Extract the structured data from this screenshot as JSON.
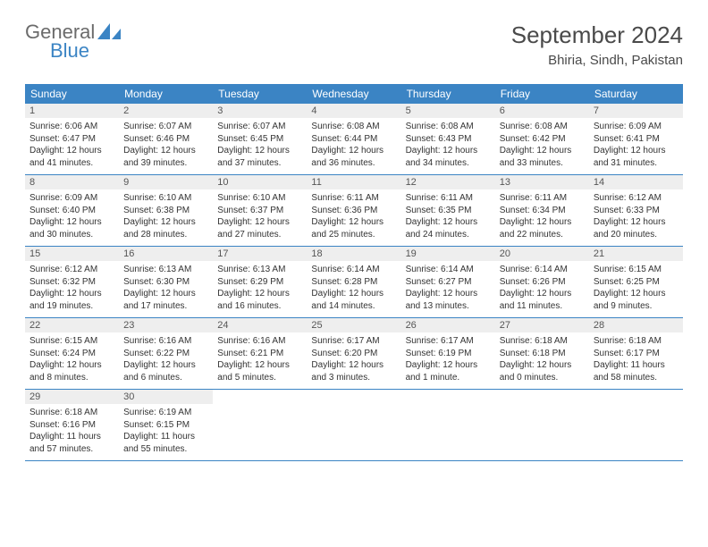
{
  "logo": {
    "word1": "General",
    "word2": "Blue"
  },
  "title": "September 2024",
  "location": "Bhiria, Sindh, Pakistan",
  "colors": {
    "accent": "#3b84c4",
    "dow_bg": "#3b84c4",
    "dow_text": "#ffffff",
    "daynum_bg": "#eeeeee",
    "text": "#333333",
    "title_text": "#4a4a4a",
    "logo_gray": "#6b6b6b"
  },
  "dow": [
    "Sunday",
    "Monday",
    "Tuesday",
    "Wednesday",
    "Thursday",
    "Friday",
    "Saturday"
  ],
  "weeks": [
    [
      {
        "n": "1",
        "sr": "Sunrise: 6:06 AM",
        "ss": "Sunset: 6:47 PM",
        "dl": "Daylight: 12 hours and 41 minutes."
      },
      {
        "n": "2",
        "sr": "Sunrise: 6:07 AM",
        "ss": "Sunset: 6:46 PM",
        "dl": "Daylight: 12 hours and 39 minutes."
      },
      {
        "n": "3",
        "sr": "Sunrise: 6:07 AM",
        "ss": "Sunset: 6:45 PM",
        "dl": "Daylight: 12 hours and 37 minutes."
      },
      {
        "n": "4",
        "sr": "Sunrise: 6:08 AM",
        "ss": "Sunset: 6:44 PM",
        "dl": "Daylight: 12 hours and 36 minutes."
      },
      {
        "n": "5",
        "sr": "Sunrise: 6:08 AM",
        "ss": "Sunset: 6:43 PM",
        "dl": "Daylight: 12 hours and 34 minutes."
      },
      {
        "n": "6",
        "sr": "Sunrise: 6:08 AM",
        "ss": "Sunset: 6:42 PM",
        "dl": "Daylight: 12 hours and 33 minutes."
      },
      {
        "n": "7",
        "sr": "Sunrise: 6:09 AM",
        "ss": "Sunset: 6:41 PM",
        "dl": "Daylight: 12 hours and 31 minutes."
      }
    ],
    [
      {
        "n": "8",
        "sr": "Sunrise: 6:09 AM",
        "ss": "Sunset: 6:40 PM",
        "dl": "Daylight: 12 hours and 30 minutes."
      },
      {
        "n": "9",
        "sr": "Sunrise: 6:10 AM",
        "ss": "Sunset: 6:38 PM",
        "dl": "Daylight: 12 hours and 28 minutes."
      },
      {
        "n": "10",
        "sr": "Sunrise: 6:10 AM",
        "ss": "Sunset: 6:37 PM",
        "dl": "Daylight: 12 hours and 27 minutes."
      },
      {
        "n": "11",
        "sr": "Sunrise: 6:11 AM",
        "ss": "Sunset: 6:36 PM",
        "dl": "Daylight: 12 hours and 25 minutes."
      },
      {
        "n": "12",
        "sr": "Sunrise: 6:11 AM",
        "ss": "Sunset: 6:35 PM",
        "dl": "Daylight: 12 hours and 24 minutes."
      },
      {
        "n": "13",
        "sr": "Sunrise: 6:11 AM",
        "ss": "Sunset: 6:34 PM",
        "dl": "Daylight: 12 hours and 22 minutes."
      },
      {
        "n": "14",
        "sr": "Sunrise: 6:12 AM",
        "ss": "Sunset: 6:33 PM",
        "dl": "Daylight: 12 hours and 20 minutes."
      }
    ],
    [
      {
        "n": "15",
        "sr": "Sunrise: 6:12 AM",
        "ss": "Sunset: 6:32 PM",
        "dl": "Daylight: 12 hours and 19 minutes."
      },
      {
        "n": "16",
        "sr": "Sunrise: 6:13 AM",
        "ss": "Sunset: 6:30 PM",
        "dl": "Daylight: 12 hours and 17 minutes."
      },
      {
        "n": "17",
        "sr": "Sunrise: 6:13 AM",
        "ss": "Sunset: 6:29 PM",
        "dl": "Daylight: 12 hours and 16 minutes."
      },
      {
        "n": "18",
        "sr": "Sunrise: 6:14 AM",
        "ss": "Sunset: 6:28 PM",
        "dl": "Daylight: 12 hours and 14 minutes."
      },
      {
        "n": "19",
        "sr": "Sunrise: 6:14 AM",
        "ss": "Sunset: 6:27 PM",
        "dl": "Daylight: 12 hours and 13 minutes."
      },
      {
        "n": "20",
        "sr": "Sunrise: 6:14 AM",
        "ss": "Sunset: 6:26 PM",
        "dl": "Daylight: 12 hours and 11 minutes."
      },
      {
        "n": "21",
        "sr": "Sunrise: 6:15 AM",
        "ss": "Sunset: 6:25 PM",
        "dl": "Daylight: 12 hours and 9 minutes."
      }
    ],
    [
      {
        "n": "22",
        "sr": "Sunrise: 6:15 AM",
        "ss": "Sunset: 6:24 PM",
        "dl": "Daylight: 12 hours and 8 minutes."
      },
      {
        "n": "23",
        "sr": "Sunrise: 6:16 AM",
        "ss": "Sunset: 6:22 PM",
        "dl": "Daylight: 12 hours and 6 minutes."
      },
      {
        "n": "24",
        "sr": "Sunrise: 6:16 AM",
        "ss": "Sunset: 6:21 PM",
        "dl": "Daylight: 12 hours and 5 minutes."
      },
      {
        "n": "25",
        "sr": "Sunrise: 6:17 AM",
        "ss": "Sunset: 6:20 PM",
        "dl": "Daylight: 12 hours and 3 minutes."
      },
      {
        "n": "26",
        "sr": "Sunrise: 6:17 AM",
        "ss": "Sunset: 6:19 PM",
        "dl": "Daylight: 12 hours and 1 minute."
      },
      {
        "n": "27",
        "sr": "Sunrise: 6:18 AM",
        "ss": "Sunset: 6:18 PM",
        "dl": "Daylight: 12 hours and 0 minutes."
      },
      {
        "n": "28",
        "sr": "Sunrise: 6:18 AM",
        "ss": "Sunset: 6:17 PM",
        "dl": "Daylight: 11 hours and 58 minutes."
      }
    ],
    [
      {
        "n": "29",
        "sr": "Sunrise: 6:18 AM",
        "ss": "Sunset: 6:16 PM",
        "dl": "Daylight: 11 hours and 57 minutes."
      },
      {
        "n": "30",
        "sr": "Sunrise: 6:19 AM",
        "ss": "Sunset: 6:15 PM",
        "dl": "Daylight: 11 hours and 55 minutes."
      },
      null,
      null,
      null,
      null,
      null
    ]
  ]
}
